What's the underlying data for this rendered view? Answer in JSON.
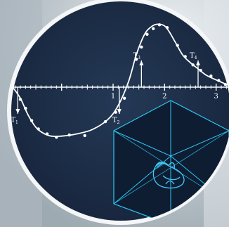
{
  "chart_data": {
    "type": "line",
    "title": "",
    "xlabel": "",
    "ylabel": "",
    "xlim": [
      -0.95,
      3.25
    ],
    "ylim": [
      -1.25,
      1.25
    ],
    "x_ticks": [
      {
        "value": 1,
        "label": "1"
      },
      {
        "value": 2,
        "label": "2"
      },
      {
        "value": 3,
        "label": "3"
      }
    ],
    "curve": {
      "x": [
        -0.95,
        -0.8,
        -0.65,
        -0.5,
        -0.35,
        -0.2,
        0.0,
        0.3,
        0.6,
        0.9,
        1.1,
        1.3,
        1.45,
        1.6,
        1.72,
        1.85,
        2.0,
        2.1,
        2.2,
        2.35,
        2.5,
        2.65,
        2.8,
        3.0,
        3.25
      ],
      "y": [
        0.0,
        -0.2,
        -0.5,
        -0.72,
        -0.83,
        -0.88,
        -0.88,
        -0.84,
        -0.76,
        -0.58,
        -0.33,
        0.1,
        0.58,
        0.93,
        1.07,
        1.13,
        1.1,
        0.98,
        0.82,
        0.58,
        0.44,
        0.33,
        0.22,
        0.13,
        0.03
      ]
    },
    "points": {
      "x": [
        -0.8,
        -0.7,
        -0.58,
        -0.45,
        -0.28,
        -0.1,
        0.15,
        0.45,
        0.85,
        1.05,
        1.22,
        1.45,
        1.55,
        1.66,
        1.78,
        1.9,
        2.05,
        2.25,
        2.4,
        2.55,
        2.7,
        2.9,
        3.05,
        3.18
      ],
      "y": [
        -0.22,
        -0.38,
        -0.6,
        -0.75,
        -0.84,
        -0.9,
        -0.86,
        -0.87,
        -0.62,
        -0.45,
        -0.2,
        0.5,
        0.72,
        0.95,
        1.05,
        1.12,
        1.07,
        0.75,
        0.55,
        0.4,
        0.3,
        0.2,
        0.12,
        0.05
      ]
    },
    "markers": [
      {
        "name": "T1",
        "sub": "1",
        "x": -0.85,
        "y": -0.48
      },
      {
        "name": "T2",
        "sub": "2",
        "x": 1.12,
        "y": -0.48
      },
      {
        "name": "T3",
        "sub": "3",
        "x": 1.55,
        "y": 0.48
      },
      {
        "name": "T4",
        "sub": "4",
        "x": 2.65,
        "y": 0.48
      }
    ],
    "marker_letter": "T",
    "grid": false,
    "legend": "none"
  },
  "colors": {
    "panel": "#1e2f4a",
    "panel_rim": "#e9eef2",
    "curve": "#ffffff",
    "axis": "#ffffff",
    "cube_edge": "#2ec6f0",
    "cube_fill": "#0f1d33",
    "heart": "#41c8f5",
    "backdrop": "#c9d2d8"
  },
  "inset": {
    "type": "3d-cube",
    "contents": "heart-model"
  }
}
